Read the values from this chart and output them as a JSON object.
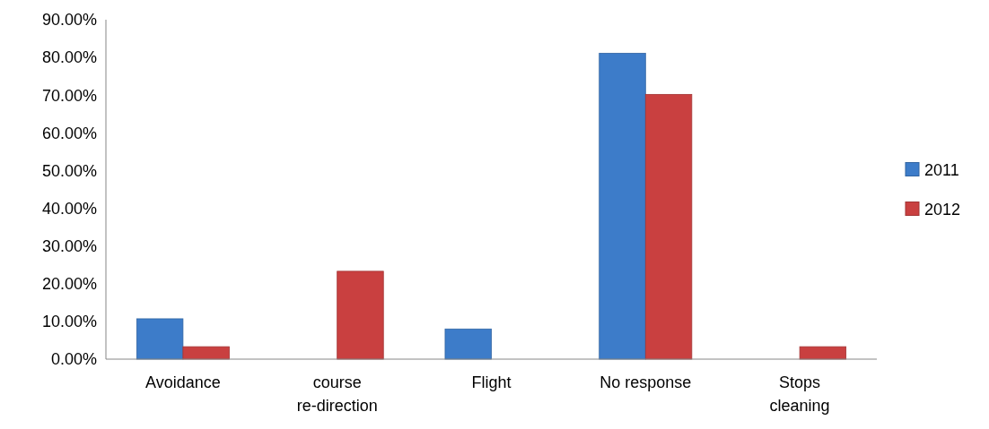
{
  "chart_data": {
    "type": "bar",
    "categories": [
      "Avoidance",
      "course re-direction",
      "Flight",
      "No response",
      "Stops cleaning"
    ],
    "series": [
      {
        "name": "2011",
        "color": "#3d7cc9",
        "values": [
          10.7,
          0,
          8.0,
          81.1,
          0
        ]
      },
      {
        "name": "2012",
        "color": "#c94040",
        "values": [
          3.3,
          23.3,
          0,
          70.2,
          3.3
        ]
      }
    ],
    "ylim": [
      0,
      90
    ],
    "yticks": [
      {
        "value": 0,
        "label": "0.00%"
      },
      {
        "value": 10,
        "label": "10.00%"
      },
      {
        "value": 20,
        "label": "20.00%"
      },
      {
        "value": 30,
        "label": "30.00%"
      },
      {
        "value": 40,
        "label": "40.00%"
      },
      {
        "value": 50,
        "label": "50.00%"
      },
      {
        "value": 60,
        "label": "60.00%"
      },
      {
        "value": 70,
        "label": "70.00%"
      },
      {
        "value": 80,
        "label": "80.00%"
      },
      {
        "value": 90,
        "label": "90.00%"
      }
    ],
    "grid": false,
    "legend": "right"
  }
}
